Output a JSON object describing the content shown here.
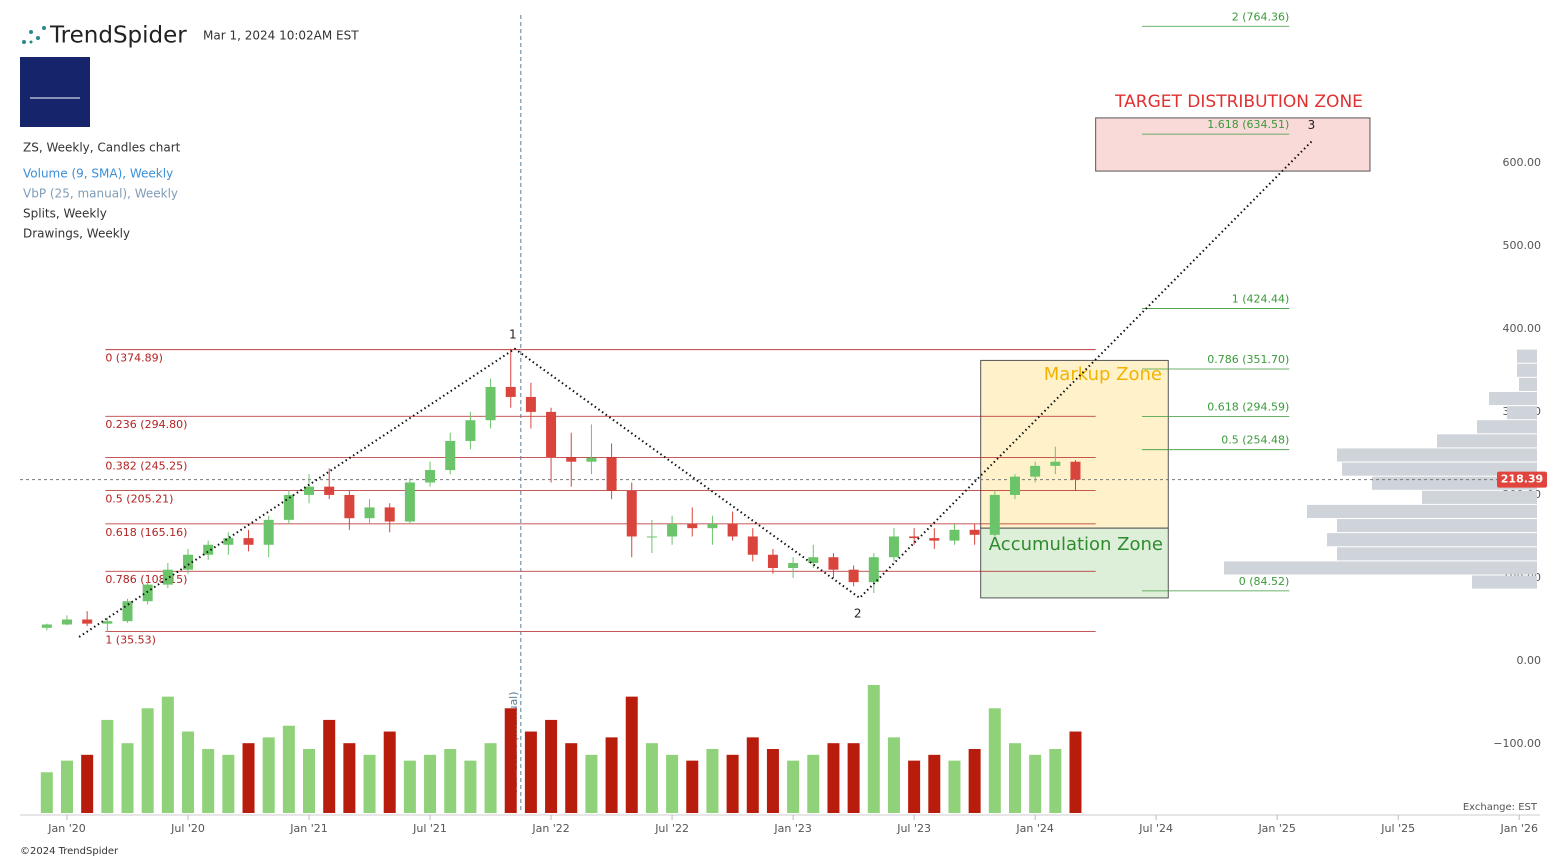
{
  "chart_data": {
    "type": "candlestick",
    "brand": "TrendSpider",
    "timestamp": "Mar 1, 2024 10:02AM EST",
    "title": "ZS, Weekly, Candles chart",
    "indicators": [
      {
        "name": "Volume (9, SMA), Weekly",
        "color": "#3a8fd8"
      },
      {
        "name": "VbP (25, manual), Weekly",
        "color": "#7f9db8"
      },
      {
        "name": "Splits, Weekly",
        "color": "#333333"
      },
      {
        "name": "Drawings, Weekly",
        "color": "#333333"
      }
    ],
    "exchange": "Exchange: EST",
    "copyright": "©2024 TrendSpider",
    "vbp_label": "VbP start (manual)",
    "vbp_start": 23.5,
    "current_price": 218.39,
    "up_color": "#6cc46a",
    "down_color": "#d9453c",
    "volume_up_color": "#8fd27a",
    "volume_down_color": "#b81c0c",
    "ylim": [
      -183,
      796
    ],
    "xlim": [
      -1.33,
      74.03
    ],
    "yticks": [
      {
        "value": 600,
        "label": "600.00"
      },
      {
        "value": 500,
        "label": "500.00"
      },
      {
        "value": 400,
        "label": "400.00"
      },
      {
        "value": 300,
        "label": "300.00"
      },
      {
        "value": 200,
        "label": "200.00"
      },
      {
        "value": 100,
        "label": "100.00"
      },
      {
        "value": 0,
        "label": "0.00"
      },
      {
        "value": -100,
        "label": "−100.00"
      }
    ],
    "xticks": [
      {
        "value": 1,
        "label": "Jan '20"
      },
      {
        "value": 7,
        "label": "Jul '20"
      },
      {
        "value": 13,
        "label": "Jan '21"
      },
      {
        "value": 19,
        "label": "Jul '21"
      },
      {
        "value": 25,
        "label": "Jan '22"
      },
      {
        "value": 31,
        "label": "Jul '22"
      },
      {
        "value": 37,
        "label": "Jan '23"
      },
      {
        "value": 43,
        "label": "Jul '23"
      },
      {
        "value": 49,
        "label": "Jan '24"
      },
      {
        "value": 55,
        "label": "Jul '24"
      },
      {
        "value": 61,
        "label": "Jan '25"
      },
      {
        "value": 67,
        "label": "Jul '25"
      },
      {
        "value": 73,
        "label": "Jan '26"
      }
    ],
    "open": [
      40,
      44,
      50,
      45,
      48,
      72,
      92,
      110,
      128,
      140,
      148,
      140,
      170,
      200,
      210,
      200,
      172,
      185,
      168,
      215,
      230,
      265,
      290,
      330,
      318,
      300,
      245,
      240,
      245,
      205,
      150,
      150,
      165,
      160,
      165,
      150,
      128,
      112,
      118,
      125,
      110,
      95,
      125,
      150,
      148,
      145,
      158,
      152,
      200,
      222,
      235,
      240
    ],
    "high": [
      45,
      55,
      60,
      52,
      75,
      95,
      118,
      135,
      145,
      155,
      158,
      175,
      205,
      225,
      232,
      205,
      195,
      190,
      220,
      240,
      275,
      300,
      340,
      376,
      335,
      305,
      275,
      285,
      262,
      215,
      170,
      175,
      185,
      175,
      180,
      160,
      135,
      125,
      140,
      130,
      115,
      130,
      160,
      160,
      160,
      165,
      165,
      205,
      225,
      240,
      258,
      242
    ],
    "low": [
      37,
      43,
      42,
      35,
      46,
      68,
      88,
      105,
      122,
      128,
      132,
      125,
      165,
      190,
      195,
      158,
      165,
      155,
      165,
      210,
      225,
      255,
      280,
      305,
      280,
      215,
      210,
      225,
      195,
      125,
      130,
      140,
      150,
      140,
      145,
      120,
      105,
      100,
      112,
      100,
      90,
      82,
      120,
      140,
      135,
      140,
      140,
      150,
      195,
      215,
      225,
      205
    ],
    "close": [
      44,
      50,
      45,
      48,
      72,
      92,
      110,
      128,
      140,
      148,
      140,
      170,
      200,
      210,
      200,
      172,
      185,
      168,
      215,
      230,
      265,
      290,
      330,
      318,
      300,
      245,
      240,
      245,
      205,
      150,
      150,
      165,
      160,
      165,
      150,
      128,
      112,
      118,
      125,
      110,
      95,
      125,
      150,
      148,
      145,
      158,
      152,
      200,
      222,
      235,
      240,
      218.39
    ],
    "volume": [
      7,
      9,
      10,
      16,
      12,
      18,
      20,
      14,
      11,
      10,
      12,
      13,
      15,
      11,
      16,
      12,
      10,
      14,
      9,
      10,
      11,
      9,
      12,
      18,
      14,
      16,
      12,
      10,
      13,
      20,
      12,
      10,
      9,
      11,
      10,
      13,
      11,
      9,
      10,
      12,
      12,
      22,
      13,
      9,
      10,
      9,
      11,
      18,
      12,
      10,
      11,
      14
    ],
    "volume_profile": {
      "color": "#cfd4da",
      "bins": [
        375,
        358,
        341,
        324,
        307,
        290,
        273,
        256,
        239,
        222,
        205,
        188,
        171,
        154,
        137,
        120,
        103,
        86
      ],
      "values": [
        20,
        20,
        18,
        48,
        30,
        60,
        100,
        200,
        195,
        165,
        115,
        230,
        200,
        210,
        200,
        313,
        65
      ]
    },
    "fib_left": {
      "color": "#b22222",
      "range": [
        2.9,
        52.0
      ],
      "levels": [
        {
          "value": 374.89,
          "label": "0 (374.89)"
        },
        {
          "value": 294.8,
          "label": "0.236 (294.80)"
        },
        {
          "value": 245.25,
          "label": "0.382 (245.25)"
        },
        {
          "value": 205.21,
          "label": "0.5 (205.21)"
        },
        {
          "value": 165.16,
          "label": "0.618 (165.16)"
        },
        {
          "value": 108.15,
          "label": "0.786 (108.15)"
        },
        {
          "value": 35.53,
          "label": "1 (35.53)"
        }
      ]
    },
    "fib_right": {
      "color": "#3a9a3a",
      "range": [
        54.3,
        61.6
      ],
      "levels": [
        {
          "value": 764.36,
          "label": "2 (764.36)"
        },
        {
          "value": 634.51,
          "label": "1.618 (634.51)"
        },
        {
          "value": 424.44,
          "label": "1 (424.44)"
        },
        {
          "value": 351.7,
          "label": "0.786 (351.70)"
        },
        {
          "value": 294.59,
          "label": "0.618 (294.59)"
        },
        {
          "value": 254.48,
          "label": "0.5 (254.48)"
        },
        {
          "value": 84.52,
          "label": "0 (84.52)"
        }
      ]
    },
    "waves": {
      "x": [
        1.6,
        23.2,
        40.3,
        62.8
      ],
      "values": [
        29,
        376,
        76,
        628
      ],
      "labels": [
        null,
        "1",
        "2",
        "3"
      ]
    },
    "zones": [
      {
        "label": "Markup Zone",
        "x": [
          46.3,
          55.6
        ],
        "values": [
          362,
          160
        ],
        "color": "#f0b400",
        "fill": "#fff0c2"
      },
      {
        "label": "Accumulation Zone",
        "x": [
          46.3,
          55.6
        ],
        "values": [
          160,
          76
        ],
        "color": "#2e8b2e",
        "fill": "#d8ecd2"
      },
      {
        "label": "TARGET DISTRIBUTION ZONE",
        "x": [
          52.0,
          65.6
        ],
        "values": [
          654,
          590
        ],
        "color": "#e03030",
        "fill": "#f9d2d2"
      }
    ]
  }
}
